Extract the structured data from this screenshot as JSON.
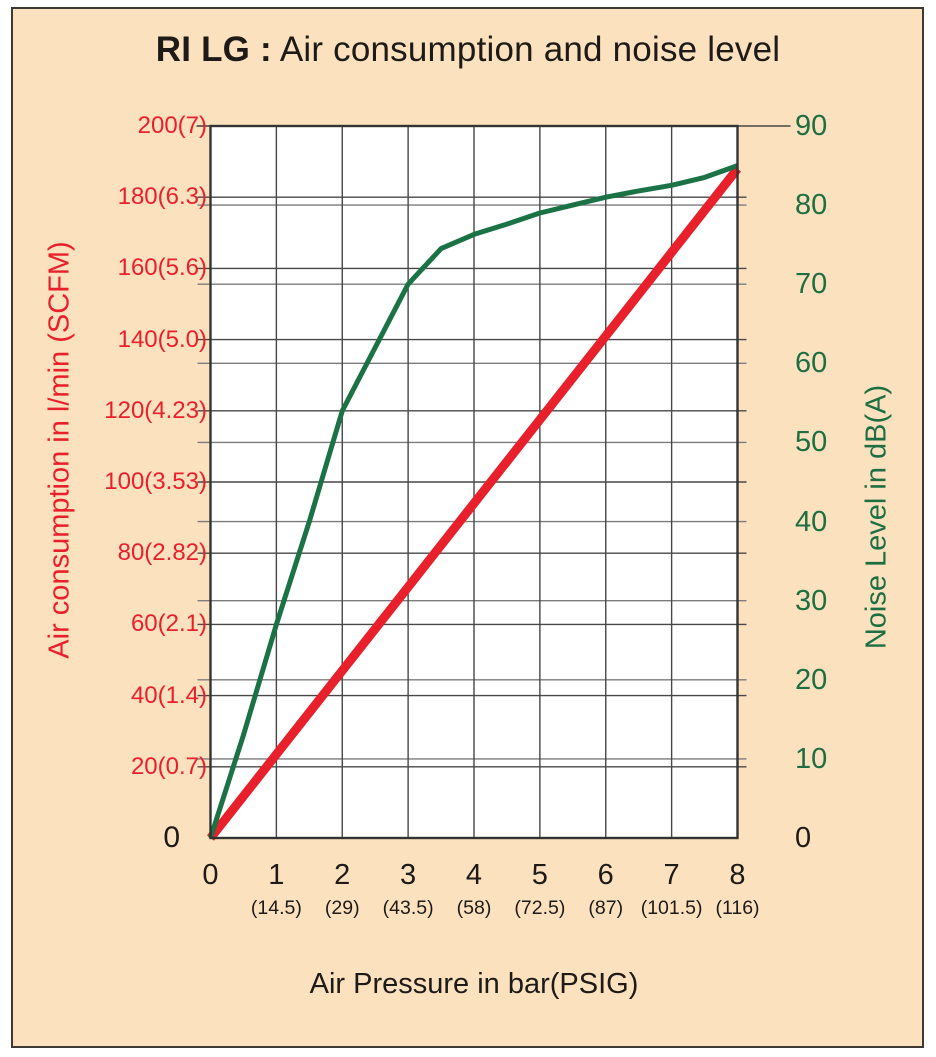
{
  "header": {
    "title_bold": "RI LG :",
    "title_rest": " Air consumption and noise level"
  },
  "colors": {
    "background": "#fce1bf",
    "frame_border": "#3e3933",
    "plot_background": "#ffffff",
    "plot_border": "#333333",
    "grid_left_scale": "#474747",
    "grid_right_scale": "#7b7b7b",
    "red_series": "#e8202c",
    "green_series": "#1a7245",
    "red_label": "#e8202c",
    "green_label": "#1d6e41",
    "black_text": "#1d1a17"
  },
  "chart_data": {
    "type": "line",
    "title": "RI LG : Air consumption and noise level",
    "xlabel": "Air  Pressure in bar(PSIG)",
    "grid": "on",
    "legend": "none",
    "x_axis": {
      "lim": [
        0,
        8
      ],
      "ticks": [
        {
          "v": 0,
          "t": "0",
          "psig": ""
        },
        {
          "v": 1,
          "t": "1",
          "psig": "(14.5)"
        },
        {
          "v": 2,
          "t": "2",
          "psig": "(29)"
        },
        {
          "v": 3,
          "t": "3",
          "psig": "(43.5)"
        },
        {
          "v": 4,
          "t": "4",
          "psig": "(58)"
        },
        {
          "v": 5,
          "t": "5",
          "psig": "(72.5)"
        },
        {
          "v": 6,
          "t": "6",
          "psig": "(87)"
        },
        {
          "v": 7,
          "t": "7",
          "psig": "(101.5)"
        },
        {
          "v": 8,
          "t": "8",
          "psig": "(116)"
        }
      ],
      "gridline_values": [
        1,
        2,
        3,
        4,
        5,
        6,
        7
      ]
    },
    "left_axis": {
      "label": "Air  consumption in l/min (SCFM)",
      "lim": [
        0,
        200
      ],
      "ticks": [
        {
          "v": 200,
          "t": "200(7)"
        },
        {
          "v": 180,
          "t": "180(6.3)"
        },
        {
          "v": 160,
          "t": "160(5.6)"
        },
        {
          "v": 140,
          "t": "140(5.0)"
        },
        {
          "v": 120,
          "t": "120(4.23)"
        },
        {
          "v": 100,
          "t": "100(3.53)"
        },
        {
          "v": 80,
          "t": "80(2.82)"
        },
        {
          "v": 60,
          "t": "60(2.1)"
        },
        {
          "v": 40,
          "t": "40(1.4)"
        },
        {
          "v": 20,
          "t": "20(0.7)"
        },
        {
          "v": 0,
          "t": "0"
        }
      ],
      "gridline_values": [
        20,
        40,
        60,
        80,
        100,
        120,
        140,
        160,
        180
      ]
    },
    "right_axis": {
      "label": "Noise Level in dB(A)",
      "lim": [
        0,
        90
      ],
      "ticks": [
        {
          "v": 90,
          "t": "90"
        },
        {
          "v": 80,
          "t": "80"
        },
        {
          "v": 70,
          "t": "70"
        },
        {
          "v": 60,
          "t": "60"
        },
        {
          "v": 50,
          "t": "50"
        },
        {
          "v": 40,
          "t": "40"
        },
        {
          "v": 30,
          "t": "30"
        },
        {
          "v": 20,
          "t": "20"
        },
        {
          "v": 10,
          "t": "10"
        },
        {
          "v": 0,
          "t": "0"
        }
      ],
      "gridline_values": [
        10,
        20,
        30,
        40,
        50,
        60,
        70,
        80
      ]
    },
    "series": [
      {
        "name": "air-consumption",
        "axis": "left",
        "color": "#e8202c",
        "stroke_width": 9,
        "points": [
          [
            0,
            0
          ],
          [
            8,
            188
          ]
        ]
      },
      {
        "name": "noise-level",
        "axis": "right",
        "color": "#1a7245",
        "stroke_width": 5,
        "points": [
          [
            0,
            0
          ],
          [
            0.5,
            13
          ],
          [
            1,
            27
          ],
          [
            1.5,
            40
          ],
          [
            2,
            54
          ],
          [
            2.5,
            62
          ],
          [
            3,
            70
          ],
          [
            3.5,
            74.5
          ],
          [
            4,
            76.3
          ],
          [
            4.5,
            77.6
          ],
          [
            5,
            79
          ],
          [
            5.5,
            80
          ],
          [
            6,
            81
          ],
          [
            6.5,
            81.8
          ],
          [
            7,
            82.5
          ],
          [
            7.5,
            83.5
          ],
          [
            8,
            85
          ]
        ]
      }
    ]
  }
}
